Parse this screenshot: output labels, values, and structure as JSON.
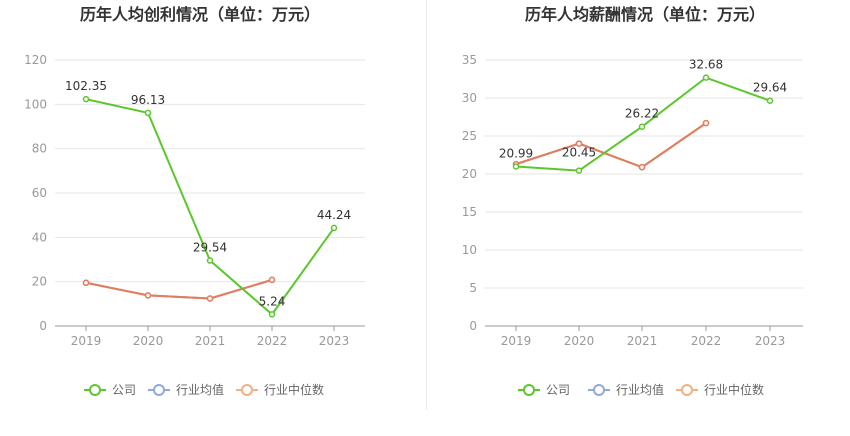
{
  "chart_data": [
    {
      "type": "line",
      "title": "历年人均创利情况（单位：万元）",
      "xlabel": "",
      "ylabel": "",
      "categories": [
        "2019",
        "2020",
        "2021",
        "2022",
        "2023"
      ],
      "ylim": [
        0,
        120
      ],
      "yticks": [
        "0",
        "20",
        "40",
        "60",
        "80",
        "100",
        "120"
      ],
      "grid": true,
      "legend_position": "bottom",
      "series": [
        {
          "name": "公司",
          "color": "#5cc72d",
          "values": [
            102.35,
            96.13,
            29.54,
            5.24,
            44.24
          ],
          "labels": [
            "102.35",
            "96.13",
            "29.54",
            "5.24",
            "44.24"
          ]
        },
        {
          "name": "行业均值",
          "color": "#8faadc",
          "values": [
            19.5,
            13.8,
            12.4,
            20.8,
            null
          ]
        },
        {
          "name": "行业中位数",
          "color": "#f4b183",
          "values": [
            19.5,
            13.8,
            12.4,
            20.8,
            null
          ]
        }
      ]
    },
    {
      "type": "line",
      "title": "历年人均薪酬情况（单位：万元）",
      "xlabel": "",
      "ylabel": "",
      "categories": [
        "2019",
        "2020",
        "2021",
        "2022",
        "2023"
      ],
      "ylim": [
        0,
        35
      ],
      "yticks": [
        "0",
        "5",
        "10",
        "15",
        "20",
        "25",
        "30",
        "35"
      ],
      "grid": true,
      "legend_position": "bottom",
      "series": [
        {
          "name": "公司",
          "color": "#5cc72d",
          "values": [
            20.99,
            20.45,
            26.22,
            32.68,
            29.64
          ],
          "labels": [
            "20.99",
            "20.45",
            "26.22",
            "32.68",
            "29.64"
          ]
        },
        {
          "name": "行业均值",
          "color": "#8faadc",
          "values": [
            21.3,
            24.0,
            20.9,
            26.7,
            null
          ]
        },
        {
          "name": "行业中位数",
          "color": "#f4b183",
          "values": [
            21.3,
            24.0,
            20.9,
            26.7,
            null
          ]
        }
      ]
    }
  ]
}
